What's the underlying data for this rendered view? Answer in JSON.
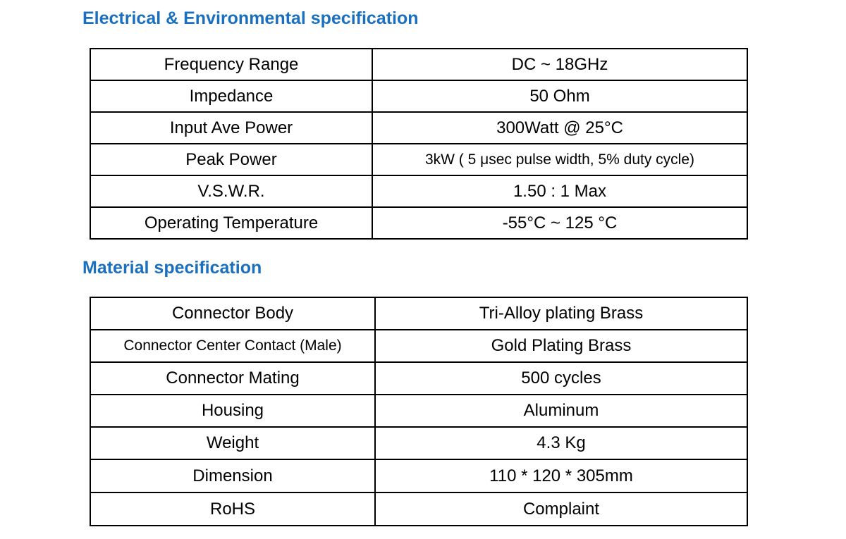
{
  "sections": [
    {
      "title": "Electrical & Environmental specification",
      "table": {
        "rows": [
          [
            "Frequency Range",
            "DC ~ 18GHz"
          ],
          [
            "Impedance",
            "50 Ohm"
          ],
          [
            "Input Ave Power",
            "300Watt @ 25°C"
          ],
          [
            "Peak Power",
            "3kW ( 5 μsec pulse width, 5% duty cycle)"
          ],
          [
            "V.S.W.R.",
            "1.50 : 1 Max"
          ],
          [
            "Operating Temperature",
            "-55°C ~ 125 °C"
          ]
        ]
      }
    },
    {
      "title": "Material specification",
      "table": {
        "rows": [
          [
            "Connector Body",
            "Tri-Alloy plating Brass"
          ],
          [
            "Connector Center Contact (Male)",
            "Gold Plating Brass"
          ],
          [
            "Connector Mating",
            "500 cycles"
          ],
          [
            "Housing",
            "Aluminum"
          ],
          [
            "Weight",
            "4.3 Kg"
          ],
          [
            "Dimension",
            "110 * 120 * 305mm"
          ],
          [
            "RoHS",
            "Complaint"
          ]
        ]
      }
    }
  ]
}
